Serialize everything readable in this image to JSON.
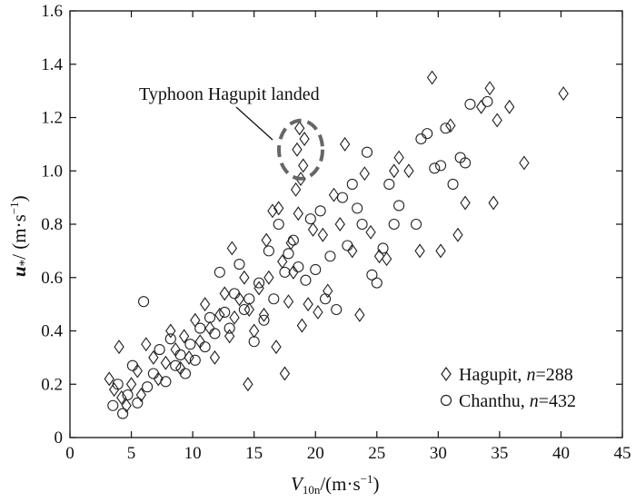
{
  "chart_data": {
    "type": "scatter",
    "xlabel": "V10n/(m·s−1)",
    "ylabel": "u*/ (m·s−1)",
    "xlim": [
      0,
      45
    ],
    "ylim": [
      0,
      1.6
    ],
    "xticks": [
      0,
      5,
      10,
      15,
      20,
      25,
      30,
      35,
      40,
      45
    ],
    "yticks": [
      0,
      0.2,
      0.4,
      0.6,
      0.8,
      1.0,
      1.2,
      1.4,
      1.6
    ],
    "xtick_labels": [
      "0",
      "5",
      "10",
      "15",
      "20",
      "25",
      "30",
      "35",
      "40",
      "45"
    ],
    "ytick_labels": [
      "0",
      "0.2",
      "0.4",
      "0.6",
      "0.8",
      "1.0",
      "1.2",
      "1.4",
      "1.6"
    ],
    "grid": false,
    "legend_position": "bottom-right",
    "annotation": {
      "text": "Typhoon Hagupit landed",
      "target_x": 18.8,
      "target_y": 1.08
    },
    "series": [
      {
        "name": "Hagupit",
        "count_label": "n=288",
        "marker": "diamond",
        "points": [
          [
            3.2,
            0.22
          ],
          [
            3.6,
            0.18
          ],
          [
            4.0,
            0.34
          ],
          [
            4.2,
            0.15
          ],
          [
            4.6,
            0.12
          ],
          [
            5.0,
            0.2
          ],
          [
            5.5,
            0.25
          ],
          [
            5.8,
            0.16
          ],
          [
            6.2,
            0.35
          ],
          [
            6.8,
            0.3
          ],
          [
            7.2,
            0.22
          ],
          [
            7.8,
            0.28
          ],
          [
            8.2,
            0.4
          ],
          [
            8.6,
            0.33
          ],
          [
            9.0,
            0.26
          ],
          [
            9.3,
            0.38
          ],
          [
            9.7,
            0.3
          ],
          [
            10.2,
            0.44
          ],
          [
            10.6,
            0.36
          ],
          [
            11.0,
            0.5
          ],
          [
            11.4,
            0.41
          ],
          [
            11.8,
            0.3
          ],
          [
            12.2,
            0.46
          ],
          [
            12.6,
            0.54
          ],
          [
            13.0,
            0.38
          ],
          [
            13.2,
            0.71
          ],
          [
            13.4,
            0.45
          ],
          [
            13.8,
            0.52
          ],
          [
            14.2,
            0.6
          ],
          [
            14.5,
            0.2
          ],
          [
            14.6,
            0.48
          ],
          [
            15.0,
            0.4
          ],
          [
            15.4,
            0.56
          ],
          [
            15.8,
            0.46
          ],
          [
            16.0,
            0.74
          ],
          [
            16.2,
            0.6
          ],
          [
            16.5,
            0.85
          ],
          [
            16.8,
            0.34
          ],
          [
            17.0,
            0.86
          ],
          [
            17.3,
            0.66
          ],
          [
            17.5,
            0.24
          ],
          [
            17.8,
            0.51
          ],
          [
            18.0,
            0.73
          ],
          [
            18.2,
            0.62
          ],
          [
            18.4,
            0.93
          ],
          [
            18.5,
            1.08
          ],
          [
            18.7,
            1.16
          ],
          [
            18.8,
            0.97
          ],
          [
            19.0,
            1.02
          ],
          [
            19.1,
            1.12
          ],
          [
            18.6,
            0.84
          ],
          [
            18.9,
            0.42
          ],
          [
            19.4,
            0.5
          ],
          [
            19.8,
            0.78
          ],
          [
            20.2,
            0.47
          ],
          [
            20.6,
            0.76
          ],
          [
            21.0,
            0.55
          ],
          [
            21.5,
            0.91
          ],
          [
            22.0,
            0.8
          ],
          [
            22.4,
            1.1
          ],
          [
            23.0,
            0.7
          ],
          [
            23.6,
            0.46
          ],
          [
            24.0,
            0.99
          ],
          [
            24.5,
            0.77
          ],
          [
            25.2,
            0.68
          ],
          [
            25.8,
            0.67
          ],
          [
            26.4,
            1.0
          ],
          [
            26.8,
            1.05
          ],
          [
            27.6,
            1.0
          ],
          [
            28.5,
            0.7
          ],
          [
            29.5,
            1.35
          ],
          [
            30.2,
            0.7
          ],
          [
            31.0,
            1.17
          ],
          [
            31.6,
            0.76
          ],
          [
            32.2,
            0.88
          ],
          [
            33.5,
            1.24
          ],
          [
            34.2,
            1.31
          ],
          [
            34.8,
            1.19
          ],
          [
            34.5,
            0.88
          ],
          [
            35.8,
            1.24
          ],
          [
            37.0,
            1.03
          ],
          [
            40.2,
            1.29
          ]
        ]
      },
      {
        "name": "Chanthu",
        "count_label": "n=432",
        "marker": "circle",
        "points": [
          [
            3.5,
            0.12
          ],
          [
            3.9,
            0.2
          ],
          [
            4.3,
            0.09
          ],
          [
            4.7,
            0.16
          ],
          [
            5.1,
            0.27
          ],
          [
            5.5,
            0.13
          ],
          [
            6.0,
            0.51
          ],
          [
            6.3,
            0.19
          ],
          [
            6.8,
            0.24
          ],
          [
            7.3,
            0.33
          ],
          [
            7.8,
            0.21
          ],
          [
            8.2,
            0.37
          ],
          [
            8.6,
            0.27
          ],
          [
            9.0,
            0.31
          ],
          [
            9.4,
            0.24
          ],
          [
            9.8,
            0.35
          ],
          [
            10.2,
            0.29
          ],
          [
            10.6,
            0.41
          ],
          [
            11.0,
            0.34
          ],
          [
            11.4,
            0.45
          ],
          [
            11.8,
            0.39
          ],
          [
            12.2,
            0.62
          ],
          [
            12.6,
            0.47
          ],
          [
            13.0,
            0.41
          ],
          [
            13.4,
            0.54
          ],
          [
            13.8,
            0.65
          ],
          [
            14.2,
            0.48
          ],
          [
            14.6,
            0.52
          ],
          [
            15.0,
            0.36
          ],
          [
            15.4,
            0.58
          ],
          [
            15.8,
            0.44
          ],
          [
            16.2,
            0.7
          ],
          [
            16.6,
            0.52
          ],
          [
            17.0,
            0.8
          ],
          [
            17.5,
            0.62
          ],
          [
            17.8,
            0.69
          ],
          [
            18.2,
            0.74
          ],
          [
            18.6,
            0.64
          ],
          [
            19.2,
            0.59
          ],
          [
            19.6,
            0.82
          ],
          [
            20.0,
            0.63
          ],
          [
            20.4,
            0.85
          ],
          [
            20.8,
            0.52
          ],
          [
            21.2,
            0.68
          ],
          [
            21.7,
            0.48
          ],
          [
            22.2,
            0.9
          ],
          [
            22.6,
            0.72
          ],
          [
            23.0,
            0.95
          ],
          [
            23.4,
            0.86
          ],
          [
            23.8,
            0.8
          ],
          [
            24.2,
            1.07
          ],
          [
            24.6,
            0.61
          ],
          [
            25.0,
            0.58
          ],
          [
            25.5,
            0.71
          ],
          [
            26.0,
            0.95
          ],
          [
            26.4,
            0.8
          ],
          [
            26.8,
            0.87
          ],
          [
            28.2,
            0.8
          ],
          [
            28.6,
            1.12
          ],
          [
            29.1,
            1.14
          ],
          [
            29.7,
            1.01
          ],
          [
            30.2,
            1.02
          ],
          [
            30.6,
            1.16
          ],
          [
            31.2,
            0.95
          ],
          [
            31.8,
            1.05
          ],
          [
            32.2,
            1.03
          ],
          [
            32.6,
            1.25
          ],
          [
            34.0,
            1.26
          ]
        ]
      }
    ]
  },
  "legend": {
    "hagupit_name": "Hagupit, ",
    "hagupit_n_var": "n",
    "hagupit_n_val": "=288",
    "chanthu_name": "Chanthu, ",
    "chanthu_n_var": "n",
    "chanthu_n_val": "=432"
  },
  "axis_title_parts": {
    "x_var": "V",
    "x_sub": "10n",
    "x_unit": "/(m·s",
    "x_exp": "−1",
    "x_close": ")",
    "y_var": "u",
    "y_star": "*",
    "y_unit": "/ (m·s",
    "y_exp": "−1",
    "y_close": ")"
  }
}
